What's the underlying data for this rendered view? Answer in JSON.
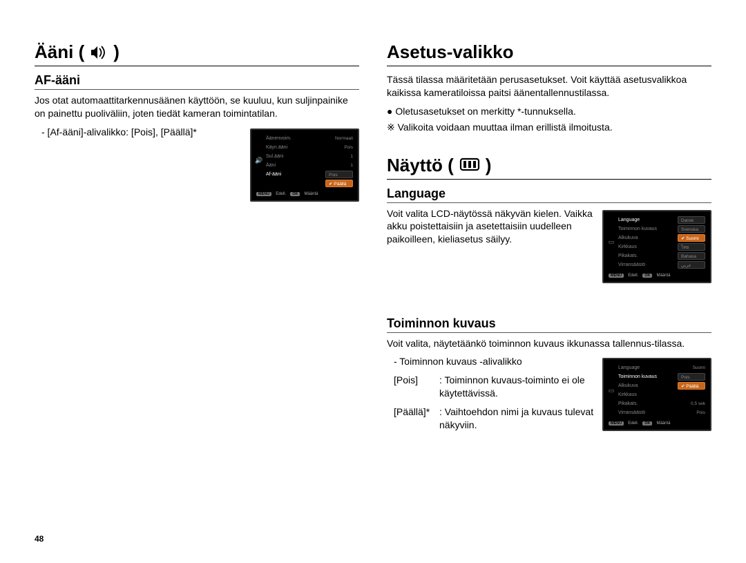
{
  "page_number": "48",
  "left": {
    "title": "Ääni (",
    "title_suffix": ")",
    "af": {
      "heading": "AF-ääni",
      "para": "Jos otat automaattitarkennusäänen käyttöön, se kuuluu, kun suljinpainike on painettu puoliväliin, joten tiedät kameran toimintatilan.",
      "sub": "- [Af-ääni]-alivalikko: [Pois], [Päällä]*",
      "menu": {
        "rows": [
          {
            "label": "Äänenvoim.",
            "value": "Normaali"
          },
          {
            "label": "Käyn.ääni",
            "value": "Pois"
          },
          {
            "label": "Sul.ääni",
            "value": "1"
          },
          {
            "label": "Ääni",
            "value": "1"
          },
          {
            "label": "Af-ääni",
            "value": ""
          }
        ],
        "options": [
          {
            "label": "Pois",
            "selected": false
          },
          {
            "label": "Päällä",
            "selected": true
          }
        ],
        "footer": {
          "back_btn": "MENU",
          "back_label": "Edell.",
          "ok_btn": "OK",
          "ok_label": "Määritä"
        }
      }
    }
  },
  "right": {
    "asetus_title": "Asetus-valikko",
    "asetus_para": "Tässä tilassa määritetään perusasetukset. Voit käyttää asetusvalikkoa kaikissa kameratiloissa paitsi äänentallennustilassa.",
    "asetus_bullet": "Oletusasetukset on merkitty *-tunnuksella.",
    "asetus_note": "※ Valikoita voidaan muuttaa ilman erillistä ilmoitusta.",
    "naytto_title": "Näyttö (",
    "naytto_title_suffix": ")",
    "language": {
      "heading": "Language",
      "para": "Voit valita LCD-näytössä näkyvän kielen. Vaikka akku poistettaisiin ja asetettaisiin uudelleen paikoilleen, kieliasetus säilyy.",
      "menu": {
        "rows": [
          {
            "label": "Language",
            "value": ""
          },
          {
            "label": "Toiminnon kuvaus",
            "value": ""
          },
          {
            "label": "Alkukuva",
            "value": ""
          },
          {
            "label": "Kirkkaus",
            "value": ""
          },
          {
            "label": "Pikakats.",
            "value": ""
          },
          {
            "label": "Virransäästö",
            "value": ""
          }
        ],
        "options": [
          {
            "label": "Dansk",
            "selected": false
          },
          {
            "label": "Svenska",
            "selected": false
          },
          {
            "label": "Suomi",
            "selected": true
          },
          {
            "label": "ไทย",
            "selected": false
          },
          {
            "label": "Bahasa",
            "selected": false
          },
          {
            "label": "عربي",
            "selected": false
          }
        ],
        "footer": {
          "back_btn": "MENU",
          "back_label": "Edell.",
          "ok_btn": "OK",
          "ok_label": "Määritä"
        }
      }
    },
    "toiminnon": {
      "heading": "Toiminnon kuvaus",
      "para": "Voit valita, näytetäänkö toiminnon kuvaus ikkunassa tallennus-tilassa.",
      "line1": "- Toiminnon kuvaus -alivalikko",
      "line2a": "[Pois]",
      "line2b": ": Toiminnon kuvaus-toiminto ei ole käytettävissä.",
      "line3a": "[Päällä]*",
      "line3b": ": Vaihtoehdon nimi ja kuvaus tulevat näkyviin.",
      "menu": {
        "rows": [
          {
            "label": "Language",
            "value": "Suomi"
          },
          {
            "label": "Toiminnon kuvaus",
            "value": ""
          },
          {
            "label": "Alkukuva",
            "value": ""
          },
          {
            "label": "Kirkkaus",
            "value": ""
          },
          {
            "label": "Pikakats.",
            "value": "0,5 sek"
          },
          {
            "label": "Virransäästö",
            "value": "Pois"
          }
        ],
        "options": [
          {
            "label": "Pois",
            "selected": false
          },
          {
            "label": "Päällä",
            "selected": true
          }
        ],
        "footer": {
          "back_btn": "MENU",
          "back_label": "Edell.",
          "ok_btn": "OK",
          "ok_label": "Määritä"
        }
      }
    }
  }
}
